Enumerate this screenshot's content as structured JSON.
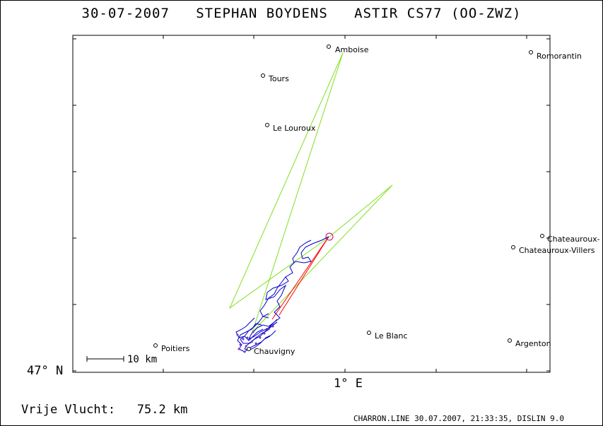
{
  "title": {
    "date": "30-07-2007",
    "pilot": "STEPHAN BOYDENS",
    "glider": "ASTIR CS77 (OO-ZWZ)"
  },
  "axes": {
    "lat_label": "47° N",
    "lon_label": "1° E"
  },
  "scale_bar": {
    "label": "10 km"
  },
  "cities": [
    {
      "name": "Amboise"
    },
    {
      "name": "Romorantin"
    },
    {
      "name": "Tours"
    },
    {
      "name": "Le Louroux"
    },
    {
      "name": "Chateauroux-"
    },
    {
      "name": "Chateauroux-Villers"
    },
    {
      "name": "Le Blanc"
    },
    {
      "name": "Argenton"
    },
    {
      "name": "Poitiers"
    },
    {
      "name": "Chauvigny"
    }
  ],
  "footer": {
    "left": "Vrije Vlucht:   75.2 km",
    "right": "CHARRON.LINE 30.07.2007, 21:33:35, DISLIN 9.0"
  },
  "colors": {
    "task_lines": "#80e020",
    "track": "#0000cc",
    "straight": "#ff0000",
    "landing_marker": "#cc0066"
  }
}
